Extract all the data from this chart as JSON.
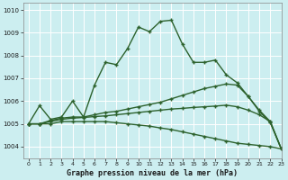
{
  "title": "Graphe pression niveau de la mer (hPa)",
  "background_color": "#cceef0",
  "grid_color": "#aadddd",
  "line_color": "#2d622d",
  "xlim": [
    -0.5,
    23
  ],
  "ylim": [
    1003.5,
    1010.3
  ],
  "yticks": [
    1004,
    1005,
    1006,
    1007,
    1008,
    1009,
    1010
  ],
  "xticks": [
    0,
    1,
    2,
    3,
    4,
    5,
    6,
    7,
    8,
    9,
    10,
    11,
    12,
    13,
    14,
    15,
    16,
    17,
    18,
    19,
    20,
    21,
    22,
    23
  ],
  "series": [
    [
      1005.0,
      1005.8,
      1005.2,
      1005.3,
      1006.0,
      1005.3,
      1006.7,
      1007.7,
      1007.6,
      1008.3,
      1009.25,
      1009.05,
      1009.5,
      1009.55,
      1008.5,
      1007.7,
      1007.7,
      1007.8,
      1007.15,
      1006.8,
      1006.2,
      1005.55,
      1005.05,
      1003.9
    ],
    [
      1005.0,
      1005.0,
      1005.15,
      1005.25,
      1005.3,
      1005.3,
      1005.4,
      1005.5,
      1005.55,
      1005.65,
      1005.75,
      1005.85,
      1005.95,
      1006.1,
      1006.25,
      1006.4,
      1006.55,
      1006.65,
      1006.75,
      1006.7,
      1006.2,
      1005.6,
      1005.1,
      1003.9
    ],
    [
      1005.0,
      1005.0,
      1005.1,
      1005.2,
      1005.25,
      1005.28,
      1005.32,
      1005.35,
      1005.4,
      1005.45,
      1005.5,
      1005.55,
      1005.6,
      1005.65,
      1005.68,
      1005.72,
      1005.75,
      1005.78,
      1005.82,
      1005.75,
      1005.6,
      1005.4,
      1005.1,
      1003.9
    ],
    [
      1005.0,
      1005.0,
      1005.0,
      1005.1,
      1005.1,
      1005.1,
      1005.1,
      1005.1,
      1005.05,
      1005.0,
      1004.95,
      1004.9,
      1004.82,
      1004.75,
      1004.65,
      1004.55,
      1004.45,
      1004.35,
      1004.25,
      1004.15,
      1004.1,
      1004.05,
      1004.0,
      1003.9
    ]
  ]
}
